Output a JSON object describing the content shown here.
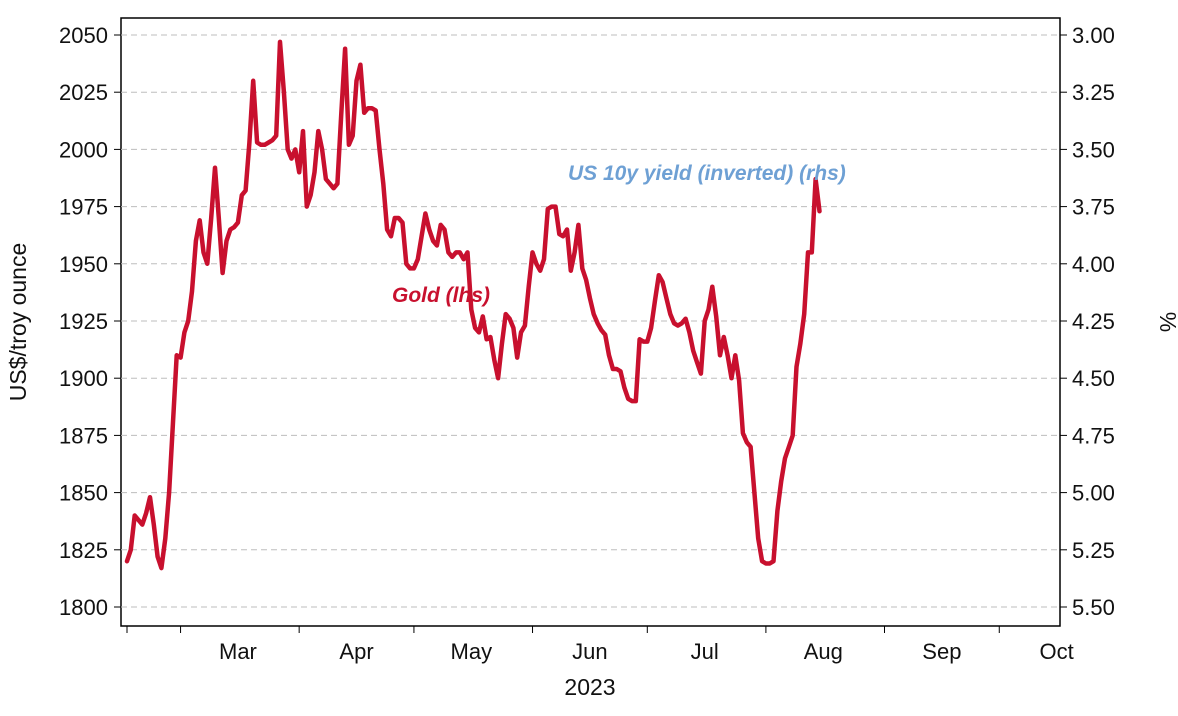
{
  "chart_data": {
    "type": "line",
    "xlabel": "2023",
    "ylabel_left": "US$/troy ounce",
    "ylabel_right": "%",
    "x_ticks": [
      "Mar",
      "Apr",
      "May",
      "Jun",
      "Jul",
      "Aug",
      "Sep",
      "Oct"
    ],
    "y_left_ticks": [
      "1800",
      "1825",
      "1850",
      "1875",
      "1900",
      "1925",
      "1950",
      "1975",
      "2000",
      "2025",
      "2050"
    ],
    "y_right_ticks": [
      "5.50",
      "5.25",
      "5.00",
      "4.75",
      "4.50",
      "4.25",
      "4.00",
      "3.75",
      "3.50",
      "3.25",
      "3.00"
    ],
    "ylim_left": [
      1800,
      2050
    ],
    "ylim_right_inverted": [
      5.5,
      3.0
    ],
    "grid": "horizontal dashed",
    "x_days": [
      "2023-02-15",
      "2023-10-14"
    ],
    "series": [
      {
        "name": "Gold (lhs)",
        "axis": "left",
        "color": "#c8102e",
        "points": [
          [
            "2023-02-15",
            1820
          ],
          [
            "2023-02-16",
            1825
          ],
          [
            "2023-02-17",
            1840
          ],
          [
            "2023-02-18",
            1838
          ],
          [
            "2023-02-19",
            1836
          ],
          [
            "2023-02-20",
            1841
          ],
          [
            "2023-02-21",
            1848
          ],
          [
            "2023-02-22",
            1836
          ],
          [
            "2023-02-23",
            1822
          ],
          [
            "2023-02-24",
            1817
          ],
          [
            "2023-02-25",
            1830
          ],
          [
            "2023-02-26",
            1850
          ],
          [
            "2023-02-27",
            1880
          ],
          [
            "2023-02-28",
            1910
          ],
          [
            "2023-03-01",
            1909
          ],
          [
            "2023-03-02",
            1920
          ],
          [
            "2023-03-03",
            1925
          ],
          [
            "2023-03-04",
            1938
          ],
          [
            "2023-03-05",
            1960
          ],
          [
            "2023-03-06",
            1969
          ],
          [
            "2023-03-07",
            1955
          ],
          [
            "2023-03-08",
            1950
          ],
          [
            "2023-03-09",
            1970
          ],
          [
            "2023-03-10",
            1992
          ],
          [
            "2023-03-11",
            1970
          ],
          [
            "2023-03-12",
            1946
          ],
          [
            "2023-03-13",
            1960
          ],
          [
            "2023-03-14",
            1965
          ],
          [
            "2023-03-15",
            1966
          ],
          [
            "2023-03-16",
            1968
          ],
          [
            "2023-03-17",
            1980
          ],
          [
            "2023-03-18",
            1982
          ],
          [
            "2023-03-19",
            2003
          ],
          [
            "2023-03-20",
            2030
          ],
          [
            "2023-03-21",
            2003
          ],
          [
            "2023-03-22",
            2002
          ],
          [
            "2023-03-23",
            2002
          ],
          [
            "2023-03-24",
            2003
          ],
          [
            "2023-03-25",
            2004
          ],
          [
            "2023-03-26",
            2006
          ],
          [
            "2023-03-27",
            2047
          ],
          [
            "2023-03-28",
            2025
          ],
          [
            "2023-03-29",
            2000
          ],
          [
            "2023-03-30",
            1996
          ],
          [
            "2023-03-31",
            2000
          ],
          [
            "2023-04-01",
            1990
          ],
          [
            "2023-04-02",
            2008
          ],
          [
            "2023-04-03",
            1975
          ],
          [
            "2023-04-04",
            1980
          ],
          [
            "2023-04-05",
            1990
          ],
          [
            "2023-04-06",
            2008
          ],
          [
            "2023-04-07",
            2000
          ],
          [
            "2023-04-08",
            1987
          ],
          [
            "2023-04-09",
            1985
          ],
          [
            "2023-04-10",
            1983
          ],
          [
            "2023-04-11",
            1985
          ],
          [
            "2023-04-12",
            2015
          ],
          [
            "2023-04-13",
            2044
          ],
          [
            "2023-04-14",
            2002
          ],
          [
            "2023-04-15",
            2006
          ],
          [
            "2023-04-16",
            2030
          ],
          [
            "2023-04-17",
            2037
          ],
          [
            "2023-04-18",
            2016
          ],
          [
            "2023-04-19",
            2018
          ],
          [
            "2023-04-20",
            2018
          ],
          [
            "2023-04-21",
            2017
          ],
          [
            "2023-04-22",
            2000
          ],
          [
            "2023-04-23",
            1985
          ],
          [
            "2023-04-24",
            1965
          ],
          [
            "2023-04-25",
            1962
          ],
          [
            "2023-04-26",
            1970
          ],
          [
            "2023-04-27",
            1970
          ],
          [
            "2023-04-28",
            1968
          ],
          [
            "2023-04-29",
            1950
          ],
          [
            "2023-04-30",
            1948
          ],
          [
            "2023-05-01",
            1948
          ],
          [
            "2023-05-02",
            1952
          ],
          [
            "2023-05-03",
            1962
          ],
          [
            "2023-05-04",
            1972
          ],
          [
            "2023-05-05",
            1965
          ],
          [
            "2023-05-06",
            1960
          ],
          [
            "2023-05-07",
            1958
          ],
          [
            "2023-05-08",
            1967
          ],
          [
            "2023-05-09",
            1965
          ],
          [
            "2023-05-10",
            1955
          ],
          [
            "2023-05-11",
            1953
          ],
          [
            "2023-05-12",
            1955
          ],
          [
            "2023-05-13",
            1955
          ],
          [
            "2023-05-14",
            1952
          ],
          [
            "2023-05-15",
            1955
          ],
          [
            "2023-05-16",
            1930
          ],
          [
            "2023-05-17",
            1922
          ],
          [
            "2023-05-18",
            1920
          ],
          [
            "2023-05-19",
            1927
          ],
          [
            "2023-05-20",
            1917
          ],
          [
            "2023-05-21",
            1918
          ],
          [
            "2023-05-22",
            1908
          ],
          [
            "2023-05-23",
            1900
          ],
          [
            "2023-05-24",
            1915
          ],
          [
            "2023-05-25",
            1928
          ],
          [
            "2023-05-26",
            1926
          ],
          [
            "2023-05-27",
            1922
          ],
          [
            "2023-05-28",
            1909
          ],
          [
            "2023-05-29",
            1920
          ],
          [
            "2023-05-30",
            1923
          ],
          [
            "2023-05-31",
            1940
          ],
          [
            "2023-06-01",
            1955
          ],
          [
            "2023-06-02",
            1950
          ],
          [
            "2023-06-03",
            1947
          ],
          [
            "2023-06-04",
            1952
          ],
          [
            "2023-06-05",
            1974
          ],
          [
            "2023-06-06",
            1975
          ],
          [
            "2023-06-07",
            1975
          ],
          [
            "2023-06-08",
            1963
          ],
          [
            "2023-06-09",
            1962
          ],
          [
            "2023-06-10",
            1965
          ],
          [
            "2023-06-11",
            1947
          ],
          [
            "2023-06-12",
            1955
          ],
          [
            "2023-06-13",
            1967
          ],
          [
            "2023-06-14",
            1948
          ],
          [
            "2023-06-15",
            1943
          ],
          [
            "2023-06-16",
            1935
          ],
          [
            "2023-06-17",
            1928
          ],
          [
            "2023-06-18",
            1924
          ],
          [
            "2023-06-19",
            1921
          ],
          [
            "2023-06-20",
            1919
          ],
          [
            "2023-06-21",
            1910
          ],
          [
            "2023-06-22",
            1904
          ],
          [
            "2023-06-23",
            1904
          ],
          [
            "2023-06-24",
            1903
          ],
          [
            "2023-06-25",
            1896
          ],
          [
            "2023-06-26",
            1891
          ],
          [
            "2023-06-27",
            1890
          ],
          [
            "2023-06-28",
            1890
          ],
          [
            "2023-06-29",
            1917
          ],
          [
            "2023-06-30",
            1916
          ],
          [
            "2023-07-01",
            1916
          ],
          [
            "2023-07-02",
            1922
          ],
          [
            "2023-07-03",
            1934
          ],
          [
            "2023-07-04",
            1945
          ],
          [
            "2023-07-05",
            1942
          ],
          [
            "2023-07-06",
            1935
          ],
          [
            "2023-07-07",
            1928
          ],
          [
            "2023-07-08",
            1924
          ],
          [
            "2023-07-09",
            1923
          ],
          [
            "2023-07-10",
            1924
          ],
          [
            "2023-07-11",
            1926
          ],
          [
            "2023-07-12",
            1920
          ],
          [
            "2023-07-13",
            1912
          ],
          [
            "2023-07-14",
            1907
          ],
          [
            "2023-07-15",
            1902
          ],
          [
            "2023-07-16",
            1925
          ],
          [
            "2023-07-17",
            1930
          ],
          [
            "2023-07-18",
            1940
          ],
          [
            "2023-07-19",
            1927
          ],
          [
            "2023-07-20",
            1910
          ],
          [
            "2023-07-21",
            1918
          ],
          [
            "2023-07-22",
            1910
          ],
          [
            "2023-07-23",
            1900
          ],
          [
            "2023-07-24",
            1910
          ],
          [
            "2023-07-25",
            1899
          ],
          [
            "2023-07-26",
            1876
          ],
          [
            "2023-07-27",
            1872
          ],
          [
            "2023-07-28",
            1870
          ],
          [
            "2023-07-29",
            1850
          ],
          [
            "2023-07-30",
            1830
          ],
          [
            "2023-07-31",
            1820
          ],
          [
            "2023-08-01",
            1819
          ],
          [
            "2023-08-02",
            1819
          ],
          [
            "2023-08-03",
            1820
          ],
          [
            "2023-08-04",
            1842
          ],
          [
            "2023-08-05",
            1855
          ],
          [
            "2023-08-06",
            1865
          ],
          [
            "2023-08-07",
            1870
          ],
          [
            "2023-08-08",
            1875
          ],
          [
            "2023-08-09",
            1905
          ],
          [
            "2023-08-10",
            1915
          ],
          [
            "2023-08-11",
            1928
          ],
          [
            "2023-08-12",
            1955
          ],
          [
            "2023-08-13",
            1955
          ],
          [
            "2023-08-14",
            1987
          ],
          [
            "2023-08-15",
            1973
          ]
        ]
      },
      {
        "name": "US 10y yield (inverted) (rhs)",
        "axis": "right",
        "color": "#6ea0d4",
        "points": []
      }
    ]
  }
}
